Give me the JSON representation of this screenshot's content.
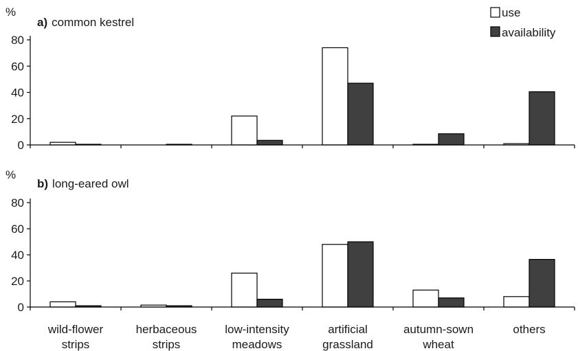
{
  "chart_data": {
    "type": "bar",
    "categories": [
      [
        "wild-flower",
        "strips"
      ],
      [
        "herbaceous",
        "strips"
      ],
      [
        "low-intensity",
        "meadows"
      ],
      [
        "artificial",
        "grassland"
      ],
      [
        "autumn-sown",
        "wheat"
      ],
      [
        "others"
      ]
    ],
    "legend": {
      "position": "top-right",
      "entries": [
        {
          "label": "use",
          "color": "#ffffff"
        },
        {
          "label": "availability",
          "color": "#404040"
        }
      ]
    },
    "panels": [
      {
        "letter": "a)",
        "title": "common kestrel",
        "ylabel": "%",
        "ylim": [
          0,
          80
        ],
        "yticks": [
          "0",
          "20",
          "40",
          "60",
          "80"
        ],
        "series": [
          {
            "name": "use",
            "values": [
              2,
              0,
              22,
              74,
              0.5,
              1
            ]
          },
          {
            "name": "availability",
            "values": [
              0.5,
              0.5,
              3.5,
              47,
              8.5,
              40.5
            ]
          }
        ]
      },
      {
        "letter": "b)",
        "title": "long-eared owl",
        "ylabel": "%",
        "ylim": [
          0,
          80
        ],
        "yticks": [
          "0",
          "20",
          "40",
          "60",
          "80"
        ],
        "series": [
          {
            "name": "use",
            "values": [
              4,
              1.5,
              26,
              48,
              13,
              8
            ]
          },
          {
            "name": "availability",
            "values": [
              1,
              1,
              6,
              50,
              7,
              36.5
            ]
          }
        ]
      }
    ]
  }
}
